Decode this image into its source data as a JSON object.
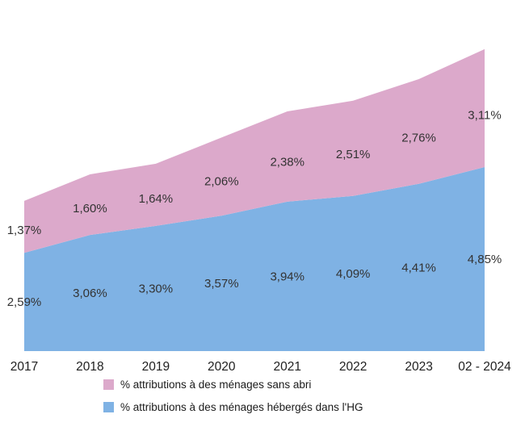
{
  "chart_data": {
    "type": "area",
    "stacked": true,
    "title": "",
    "xlabel": "",
    "ylabel": "",
    "ylim": [
      0,
      8.5
    ],
    "grid": false,
    "legend_position": "bottom",
    "categories": [
      "2017",
      "2018",
      "2019",
      "2020",
      "2021",
      "2022",
      "2023",
      "02 - 2024"
    ],
    "series": [
      {
        "name": "% attributions à des ménages sans abri",
        "values": [
          1.37,
          1.6,
          1.64,
          2.06,
          2.38,
          2.51,
          2.76,
          3.11
        ],
        "labels": [
          "1,37%",
          "1,60%",
          "1,64%",
          "2,06%",
          "2,38%",
          "2,51%",
          "2,76%",
          "3,11%"
        ],
        "color": "#DCA9CB",
        "stack_order": "top"
      },
      {
        "name": "% attributions à des ménages hébergés dans l'HG",
        "values": [
          2.59,
          3.06,
          3.3,
          3.57,
          3.94,
          4.09,
          4.41,
          4.85
        ],
        "labels": [
          "2,59%",
          "3,06%",
          "3,30%",
          "3,57%",
          "3,94%",
          "4,09%",
          "4,41%",
          "4,85%"
        ],
        "color": "#7FB2E4",
        "stack_order": "bottom"
      }
    ]
  }
}
